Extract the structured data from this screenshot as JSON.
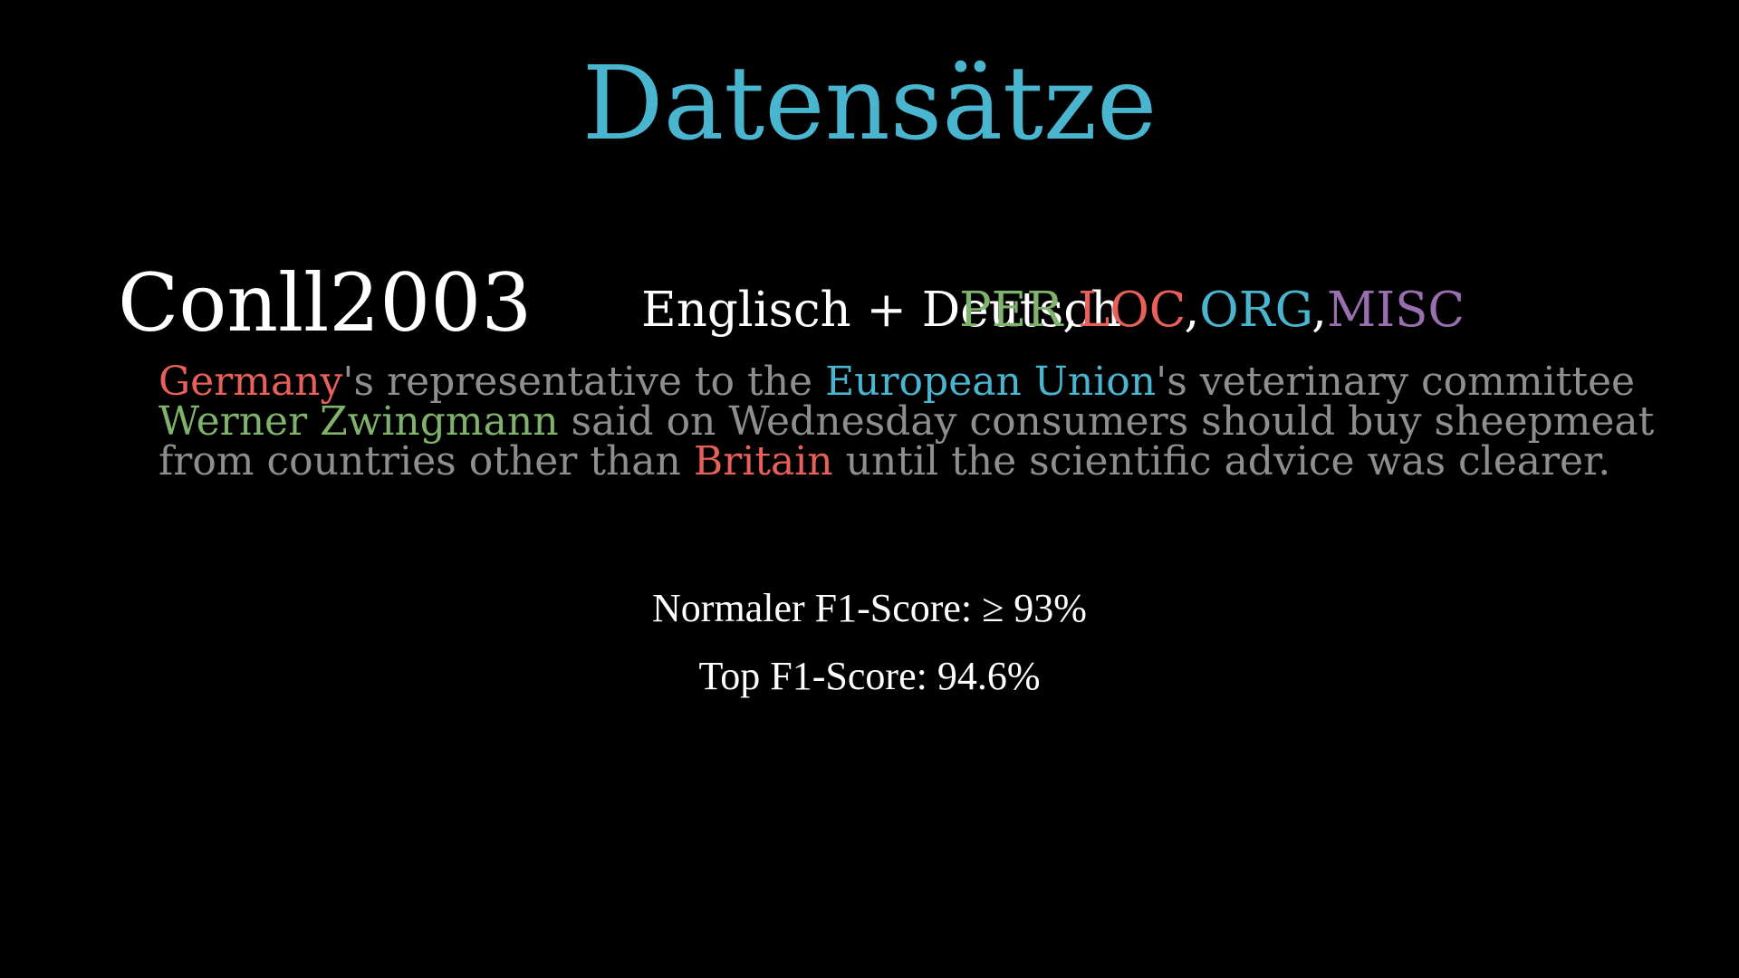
{
  "title": "Datensätze",
  "dataset": {
    "name": "Conll2003",
    "languages": "Englisch + Deutsch",
    "labels": [
      {
        "text": "PER",
        "color": "#7fb26a"
      },
      {
        "text": "LOC",
        "color": "#e8605a"
      },
      {
        "text": "ORG",
        "color": "#4ab5cf"
      },
      {
        "text": "MISC",
        "color": "#9a6fb0"
      }
    ],
    "separator": ","
  },
  "example": {
    "lines": [
      [
        {
          "text": "Germany",
          "entity": "LOC"
        },
        {
          "text": "'s representative to the ",
          "entity": null
        },
        {
          "text": "European Union",
          "entity": "ORG"
        },
        {
          "text": "'s veterinary committee",
          "entity": null
        }
      ],
      [
        {
          "text": "Werner Zwingmann",
          "entity": "PER"
        },
        {
          "text": " said on Wednesday consumers should buy sheepmeat",
          "entity": null
        }
      ],
      [
        {
          "text": "from countries other than ",
          "entity": null
        },
        {
          "text": "Britain",
          "entity": "LOC"
        },
        {
          "text": " until the scientific advice was clearer.",
          "entity": null
        }
      ]
    ]
  },
  "scores": {
    "normal": "Normaler F1-Score: ≥ 93%",
    "top": "Top F1-Score: 94.6%"
  },
  "colors": {
    "title": "#4ab5cf",
    "text": "#ffffff",
    "example_text": "#8e8e8e",
    "background": "#000000"
  }
}
